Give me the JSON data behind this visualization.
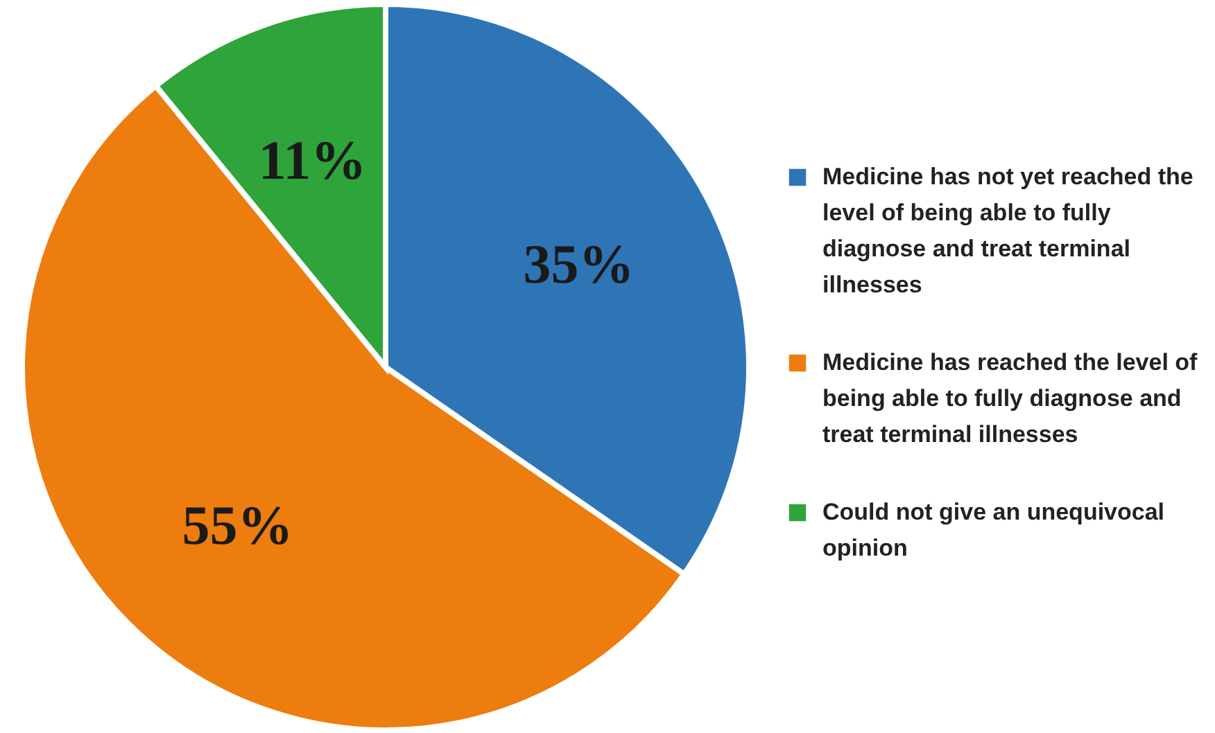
{
  "chart_data": {
    "type": "pie",
    "categories": [
      "Medicine has not yet reached the level of being able to fully diagnose and treat terminal illnesses",
      "Medicine has reached the level of being able to fully diagnose and treat terminal illnesses",
      "Could not give an unequivocal opinion"
    ],
    "values": [
      35,
      55,
      11
    ],
    "colors": [
      "#2e75b6",
      "#ed7d0e",
      "#2ea43a"
    ],
    "value_labels": [
      "35%",
      "55%",
      "11%"
    ],
    "legend": "right"
  }
}
